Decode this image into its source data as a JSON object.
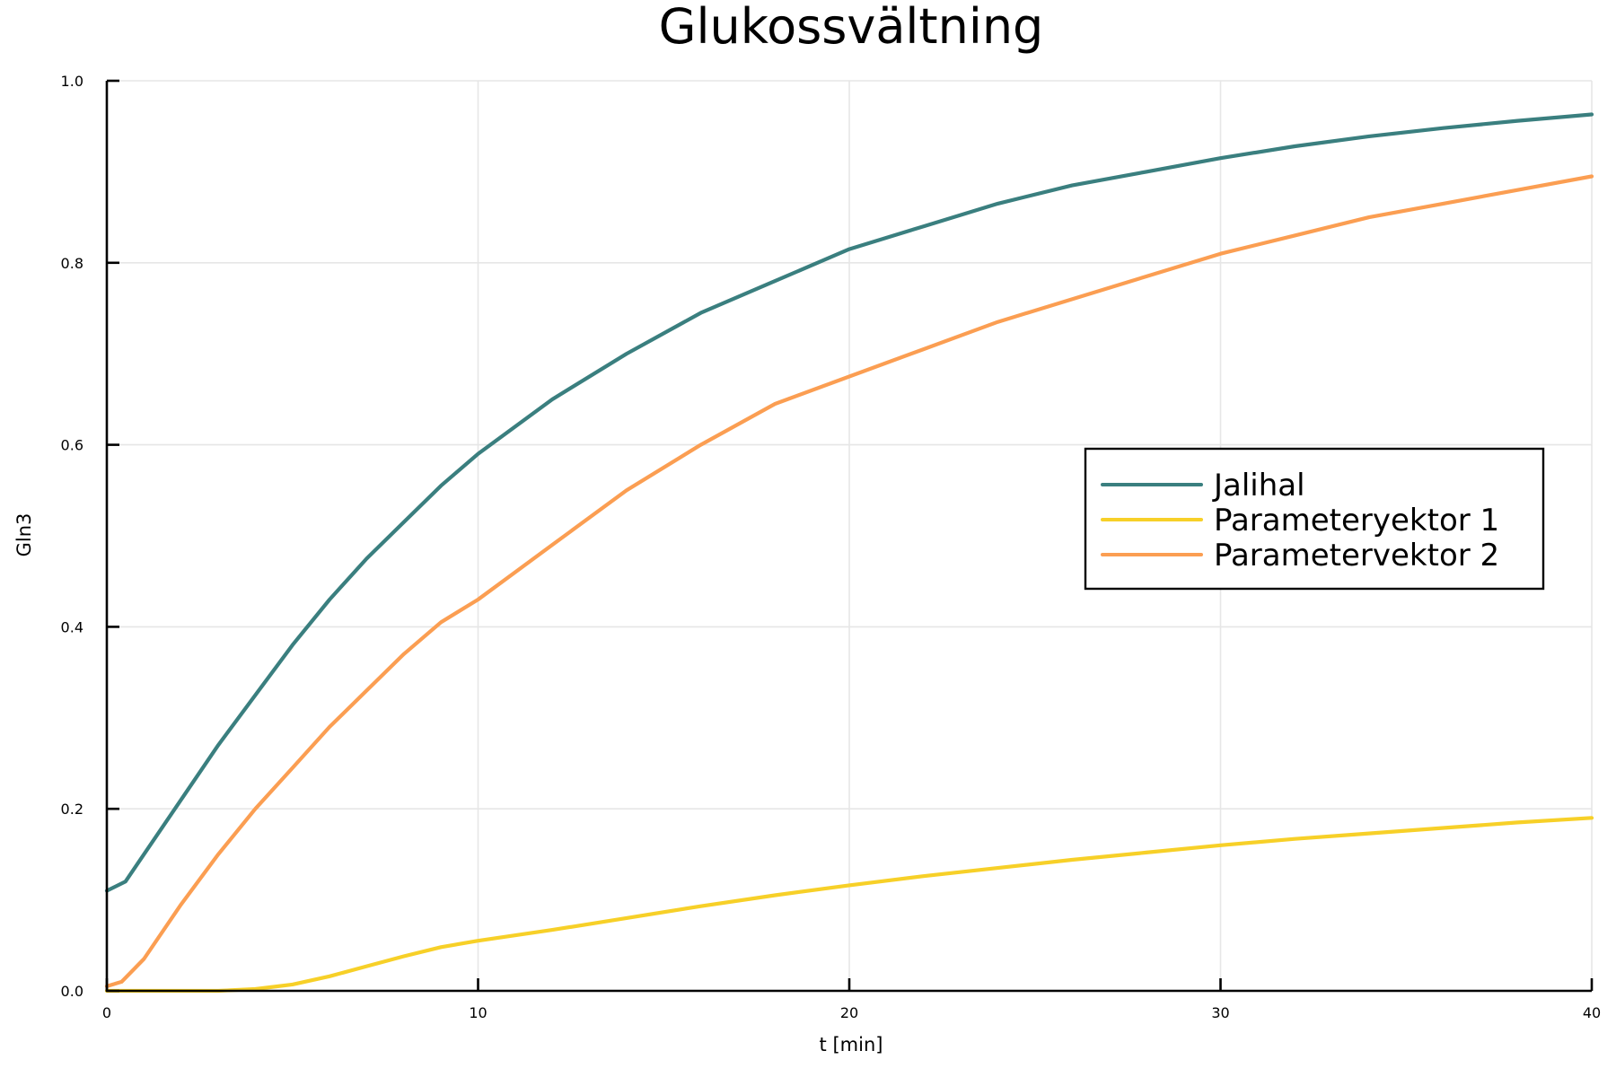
{
  "chart_data": {
    "type": "line",
    "title": "Glukossvältning",
    "xlabel": "t [min]",
    "ylabel": "Gln3",
    "xlim": [
      0,
      40
    ],
    "ylim": [
      0,
      1
    ],
    "xticks": [
      0,
      10,
      20,
      30,
      40
    ],
    "xtick_labels": [
      "0",
      "10",
      "20",
      "30",
      "40"
    ],
    "yticks": [
      0,
      0.2,
      0.4,
      0.6,
      0.8,
      1.0
    ],
    "ytick_labels": [
      "0.0",
      "0.2",
      "0.4",
      "0.6",
      "0.8",
      "1.0"
    ],
    "grid": true,
    "legend_position": "right",
    "series": [
      {
        "name": "Jalihal",
        "color": "#3a7f7f",
        "x": [
          0,
          0.5,
          1,
          2,
          3,
          4,
          5,
          6,
          7,
          8,
          9,
          10,
          12,
          14,
          16,
          18,
          20,
          22,
          24,
          26,
          28,
          30,
          32,
          34,
          36,
          38,
          40
        ],
        "y": [
          0.11,
          0.12,
          0.15,
          0.21,
          0.27,
          0.325,
          0.38,
          0.43,
          0.475,
          0.515,
          0.555,
          0.59,
          0.65,
          0.7,
          0.745,
          0.78,
          0.815,
          0.84,
          0.865,
          0.885,
          0.9,
          0.915,
          0.928,
          0.939,
          0.948,
          0.956,
          0.963
        ]
      },
      {
        "name": "Parameteryektor 1",
        "color": "#f7d028",
        "x": [
          0,
          1,
          2,
          3,
          4,
          5,
          6,
          7,
          8,
          9,
          10,
          12,
          14,
          16,
          18,
          20,
          22,
          24,
          26,
          28,
          30,
          32,
          34,
          36,
          38,
          40
        ],
        "y": [
          0,
          0,
          0,
          0,
          0.002,
          0.007,
          0.016,
          0.027,
          0.038,
          0.048,
          0.055,
          0.067,
          0.08,
          0.093,
          0.105,
          0.116,
          0.126,
          0.135,
          0.144,
          0.152,
          0.16,
          0.167,
          0.173,
          0.179,
          0.185,
          0.19
        ]
      },
      {
        "name": "Parametervektor 2",
        "color": "#fb9e52",
        "x": [
          0,
          0.4,
          1,
          2,
          3,
          4,
          5,
          6,
          7,
          8,
          9,
          10,
          12,
          14,
          16,
          18,
          20,
          22,
          24,
          26,
          28,
          30,
          32,
          34,
          36,
          38,
          40
        ],
        "y": [
          0.005,
          0.01,
          0.035,
          0.095,
          0.15,
          0.2,
          0.245,
          0.29,
          0.33,
          0.37,
          0.405,
          0.43,
          0.49,
          0.55,
          0.6,
          0.645,
          0.675,
          0.705,
          0.735,
          0.76,
          0.785,
          0.81,
          0.83,
          0.85,
          0.865,
          0.88,
          0.895
        ]
      }
    ]
  }
}
